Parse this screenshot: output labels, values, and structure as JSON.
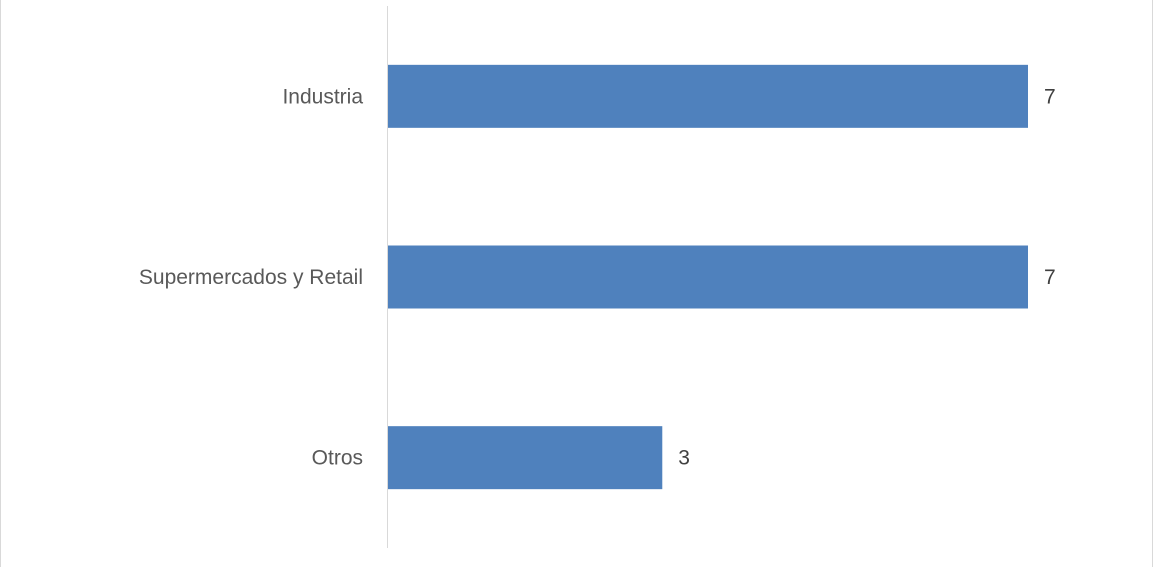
{
  "chart_data": {
    "type": "bar",
    "orientation": "horizontal",
    "categories": [
      "Industria",
      "Supermercados y Retail",
      "Otros"
    ],
    "values": [
      7,
      7,
      3
    ],
    "title": "",
    "xlabel": "",
    "ylabel": "",
    "xlim": [
      0,
      7
    ],
    "grid": false,
    "data_labels": true,
    "bar_color": "#4f81bd"
  }
}
